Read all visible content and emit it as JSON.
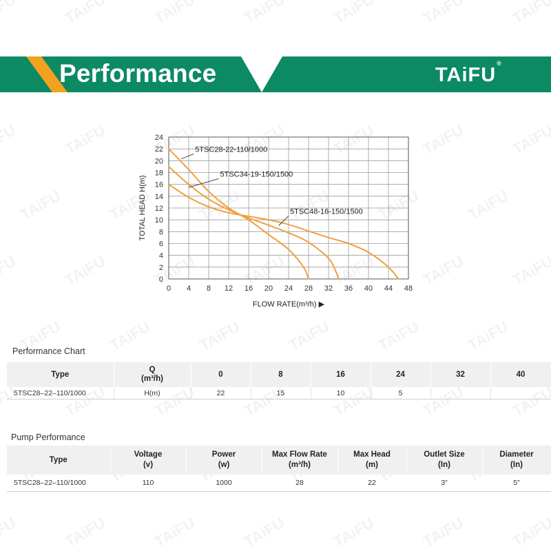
{
  "header": {
    "title": "Performance",
    "brand": "TAiFU",
    "brand_mark": "®",
    "watermark_text": "TAiFU",
    "colors": {
      "band": "#0b8a63",
      "accent": "#f4a11d"
    }
  },
  "chart_data": {
    "type": "line",
    "title": "",
    "xlabel": "FLOW RATE(m³/h) ▶",
    "ylabel": "TOTAL HEAD H(m)",
    "xlim": [
      0,
      48
    ],
    "ylim": [
      0,
      24
    ],
    "xticks": [
      0,
      4,
      8,
      12,
      16,
      20,
      24,
      28,
      32,
      36,
      40,
      44,
      48
    ],
    "yticks": [
      0,
      2,
      4,
      6,
      8,
      10,
      12,
      14,
      16,
      18,
      20,
      22,
      24
    ],
    "grid": true,
    "line_color": "#f0a03a",
    "series": [
      {
        "name": "5TSC28-22-110/1000",
        "x": [
          0,
          4,
          8,
          12,
          16,
          20,
          24,
          27,
          28
        ],
        "y": [
          22,
          18.5,
          14.8,
          12,
          10,
          7.5,
          5,
          2,
          0
        ]
      },
      {
        "name": "5TSC34-19-150/1500",
        "x": [
          0,
          4,
          8,
          12,
          16,
          20,
          24,
          28,
          32,
          33.5,
          34
        ],
        "y": [
          19,
          16,
          13.5,
          11.7,
          10.3,
          9.1,
          7.8,
          6.2,
          3.5,
          1.2,
          0
        ]
      },
      {
        "name": "5TSC48-16-150/1500",
        "x": [
          0,
          4,
          8,
          12,
          16,
          20,
          24,
          28,
          32,
          36,
          40,
          44,
          46
        ],
        "y": [
          16,
          13.8,
          12.2,
          11.2,
          10.6,
          10,
          9.2,
          8.1,
          7,
          6,
          4.5,
          2,
          0
        ]
      }
    ],
    "annotations": [
      {
        "text": "5TSC28-22-110/1000",
        "series": 0,
        "x": 2.5,
        "y": 20.3,
        "label_x": 5,
        "label_y": 21.5
      },
      {
        "text": "5TSC34-19-150/1500",
        "series": 1,
        "x": 4,
        "y": 15.5,
        "label_x": 10,
        "label_y": 17.3
      },
      {
        "text": "5TSC48-16-150/1500",
        "series": 2,
        "x": 22,
        "y": 9,
        "label_x": 24,
        "label_y": 11
      }
    ]
  },
  "perf_chart": {
    "title": "Performance Chart",
    "type_header": "Type",
    "q_header": "Q",
    "q_unit": "(m³/h)",
    "flows": [
      "0",
      "8",
      "16",
      "24",
      "32",
      "40"
    ],
    "row": {
      "type": "5TSC28–22–110/1000",
      "unit": "H(m)",
      "values": [
        "22",
        "15",
        "10",
        "5",
        "",
        ""
      ]
    }
  },
  "pump_perf": {
    "title": "Pump Performance",
    "headers": [
      {
        "name": "Type",
        "unit": ""
      },
      {
        "name": "Voltage",
        "unit": "(v)"
      },
      {
        "name": "Power",
        "unit": "(w)"
      },
      {
        "name": "Max Flow Rate",
        "unit": "(m³/h)"
      },
      {
        "name": "Max Head",
        "unit": "(m)"
      },
      {
        "name": "Outlet Size",
        "unit": "(In)"
      },
      {
        "name": "Diameter",
        "unit": "(In)"
      }
    ],
    "row": [
      "5TSC28–22–110/1000",
      "110",
      "1000",
      "28",
      "22",
      "3\"",
      "5\""
    ]
  }
}
